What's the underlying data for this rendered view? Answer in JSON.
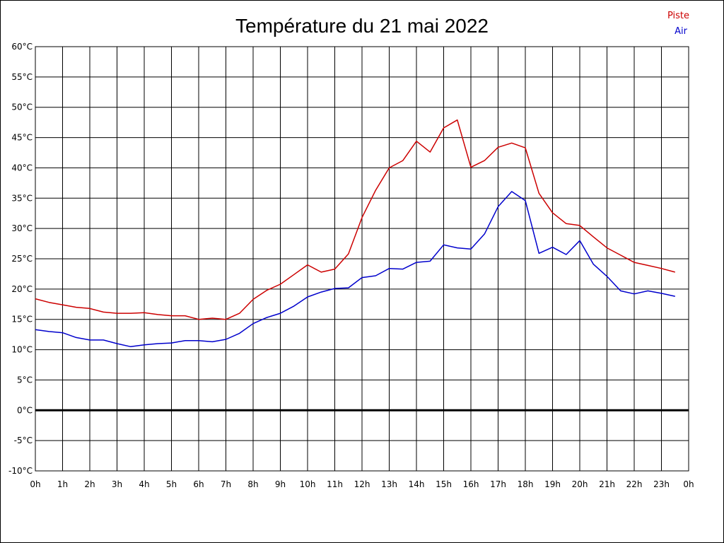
{
  "chart_data": {
    "type": "line",
    "title": "Température du 21 mai 2022",
    "xlabel": "",
    "ylabel": "",
    "ylim": [
      -10,
      60
    ],
    "y_ticks": [
      "60°C",
      "55°C",
      "50°C",
      "45°C",
      "40°C",
      "35°C",
      "30°C",
      "25°C",
      "20°C",
      "15°C",
      "10°C",
      "5°C",
      "0°C",
      "-5°C",
      "-10°C"
    ],
    "x_ticks": [
      "0h",
      "1h",
      "2h",
      "3h",
      "4h",
      "5h",
      "6h",
      "7h",
      "8h",
      "9h",
      "10h",
      "11h",
      "12h",
      "13h",
      "14h",
      "15h",
      "16h",
      "17h",
      "18h",
      "19h",
      "20h",
      "21h",
      "22h",
      "23h",
      "0h"
    ],
    "grid": true,
    "legend_position": "top-right",
    "x_hours": [
      0,
      0.5,
      1,
      1.5,
      2,
      2.5,
      3,
      3.5,
      4,
      4.5,
      5,
      5.5,
      6,
      6.5,
      7,
      7.5,
      8,
      8.5,
      9,
      9.5,
      10,
      10.5,
      11,
      11.5,
      12,
      12.5,
      13,
      13.5,
      14,
      14.5,
      15,
      15.5,
      16,
      16.5,
      17,
      17.5,
      18,
      18.5,
      19,
      19.5,
      20,
      20.5,
      21,
      21.5,
      22,
      22.5,
      23,
      23.5
    ],
    "series": [
      {
        "name": "Piste",
        "color": "#cc0000",
        "values": [
          18.4,
          17.8,
          17.4,
          17.0,
          16.8,
          16.2,
          16.0,
          16.0,
          16.1,
          15.8,
          15.6,
          15.6,
          15.0,
          15.2,
          15.0,
          16.0,
          18.3,
          19.8,
          20.8,
          22.4,
          24.0,
          22.8,
          23.3,
          25.8,
          31.8,
          36.3,
          40.0,
          41.2,
          44.4,
          42.6,
          46.6,
          47.9,
          40.1,
          41.2,
          43.4,
          44.1,
          43.3,
          35.8,
          32.6,
          30.8,
          30.5,
          28.6,
          26.8,
          25.6,
          24.4,
          23.9,
          23.4,
          22.8
        ]
      },
      {
        "name": "Air",
        "color": "#0000cc",
        "values": [
          13.3,
          13.0,
          12.8,
          12.0,
          11.6,
          11.6,
          11.0,
          10.5,
          10.8,
          11.0,
          11.1,
          11.5,
          11.5,
          11.3,
          11.7,
          12.7,
          14.3,
          15.3,
          16.0,
          17.2,
          18.7,
          19.5,
          20.1,
          20.2,
          21.9,
          22.2,
          23.4,
          23.3,
          24.4,
          24.6,
          27.3,
          26.8,
          26.6,
          29.1,
          33.6,
          36.1,
          34.6,
          25.9,
          26.9,
          25.7,
          28.0,
          24.1,
          22.1,
          19.7,
          19.2,
          19.7,
          19.3,
          18.8
        ]
      }
    ]
  }
}
